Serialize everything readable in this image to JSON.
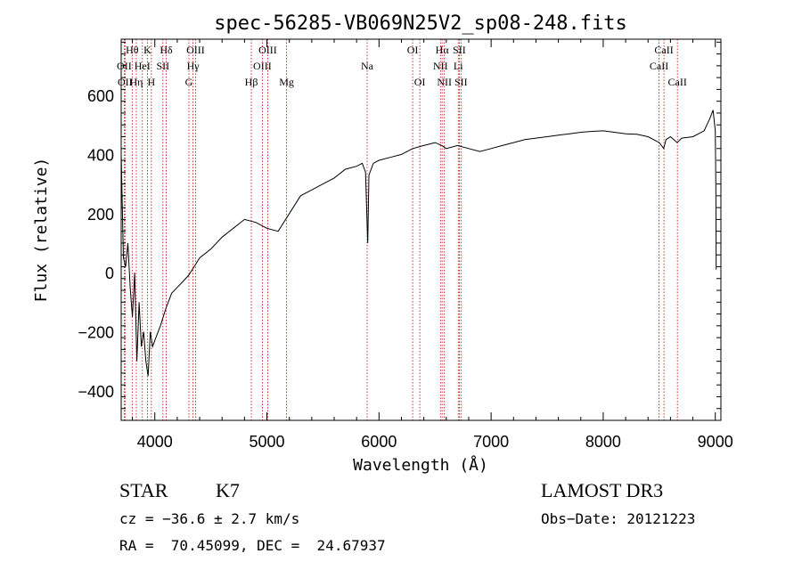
{
  "chart_data": {
    "type": "line",
    "title": "spec-56285-VB069N25V2_sp08-248.fits",
    "xlabel": "Wavelength (Å)",
    "ylabel": "Flux (relative)",
    "xlim": [
      3700,
      9050
    ],
    "ylim": [
      -500,
      790
    ],
    "xticks": [
      4000,
      5000,
      6000,
      7000,
      8000,
      9000
    ],
    "yticks": [
      -400,
      -200,
      0,
      200,
      400,
      600
    ],
    "spectrum": {
      "x": [
        3700,
        3720,
        3740,
        3760,
        3780,
        3800,
        3820,
        3840,
        3860,
        3880,
        3900,
        3920,
        3940,
        3960,
        3980,
        4000,
        4050,
        4100,
        4150,
        4200,
        4250,
        4300,
        4350,
        4400,
        4500,
        4600,
        4700,
        4800,
        4900,
        5000,
        5100,
        5200,
        5250,
        5300,
        5400,
        5500,
        5600,
        5700,
        5800,
        5850,
        5880,
        5895,
        5900,
        5910,
        5950,
        6000,
        6100,
        6200,
        6300,
        6400,
        6500,
        6560,
        6600,
        6700,
        6800,
        6900,
        7000,
        7100,
        7200,
        7300,
        7400,
        7500,
        7600,
        7700,
        7800,
        7900,
        8000,
        8100,
        8200,
        8300,
        8400,
        8500,
        8540,
        8560,
        8600,
        8660,
        8700,
        8800,
        8900,
        8950,
        8980,
        9000,
        9005,
        9008
      ],
      "y": [
        400,
        50,
        20,
        100,
        -50,
        -150,
        0,
        -300,
        -100,
        -250,
        -200,
        -300,
        -350,
        -200,
        -250,
        -230,
        -180,
        -120,
        -70,
        -50,
        -30,
        -10,
        20,
        50,
        80,
        120,
        150,
        180,
        170,
        150,
        140,
        200,
        230,
        260,
        280,
        300,
        320,
        350,
        360,
        370,
        340,
        150,
        100,
        330,
        370,
        380,
        390,
        400,
        420,
        430,
        440,
        430,
        420,
        430,
        420,
        410,
        420,
        430,
        440,
        450,
        455,
        460,
        465,
        470,
        475,
        478,
        480,
        475,
        470,
        468,
        460,
        440,
        420,
        450,
        460,
        440,
        455,
        460,
        480,
        520,
        550,
        480,
        300,
        10
      ]
    },
    "line_markers": [
      {
        "wavelength": 3727,
        "label": "OII",
        "row": 2
      },
      {
        "wavelength": 3734,
        "label": "OII",
        "row": 3
      },
      {
        "wavelength": 3798,
        "label": "Hθ",
        "row": 1
      },
      {
        "wavelength": 3835,
        "label": "Hη",
        "row": 3
      },
      {
        "wavelength": 3889,
        "label": "HeI",
        "row": 2
      },
      {
        "wavelength": 3934,
        "label": "K",
        "row": 1
      },
      {
        "wavelength": 3969,
        "label": "H",
        "row": 3
      },
      {
        "wavelength": 4072,
        "label": "SII",
        "row": 2
      },
      {
        "wavelength": 4102,
        "label": "Hδ",
        "row": 1
      },
      {
        "wavelength": 4304,
        "label": "G",
        "row": 3
      },
      {
        "wavelength": 4341,
        "label": "Hγ",
        "row": 2
      },
      {
        "wavelength": 4363,
        "label": "OIII",
        "row": 1
      },
      {
        "wavelength": 4861,
        "label": "Hβ",
        "row": 3
      },
      {
        "wavelength": 4959,
        "label": "OIII",
        "row": 2
      },
      {
        "wavelength": 5007,
        "label": "OIII",
        "row": 1
      },
      {
        "wavelength": 5175,
        "label": "Mg",
        "row": 3
      },
      {
        "wavelength": 5894,
        "label": "Na",
        "row": 2
      },
      {
        "wavelength": 6300,
        "label": "OI",
        "row": 1
      },
      {
        "wavelength": 6364,
        "label": "OI",
        "row": 3
      },
      {
        "wavelength": 6548,
        "label": "NII",
        "row": 2
      },
      {
        "wavelength": 6563,
        "label": "Hα",
        "row": 1
      },
      {
        "wavelength": 6583,
        "label": "NII",
        "row": 3
      },
      {
        "wavelength": 6707,
        "label": "Li",
        "row": 2
      },
      {
        "wavelength": 6716,
        "label": "SII",
        "row": 1
      },
      {
        "wavelength": 6731,
        "label": "SII",
        "row": 3
      },
      {
        "wavelength": 8498,
        "label": "CaII",
        "row": 2
      },
      {
        "wavelength": 8542,
        "label": "CaII",
        "row": 1
      },
      {
        "wavelength": 8662,
        "label": "CaII",
        "row": 3
      }
    ]
  },
  "footer": {
    "class_type": "STAR",
    "subclass": "K7",
    "survey": "LAMOST DR3",
    "cz": "cz = −36.6 ± 2.7 km/s",
    "obs_date": "Obs−Date: 20121223",
    "coords": "RA =  70.45099, DEC =  24.67937"
  },
  "colors": {
    "spectrum": "#000000",
    "markers": "#c00000",
    "axes": "#000000"
  }
}
